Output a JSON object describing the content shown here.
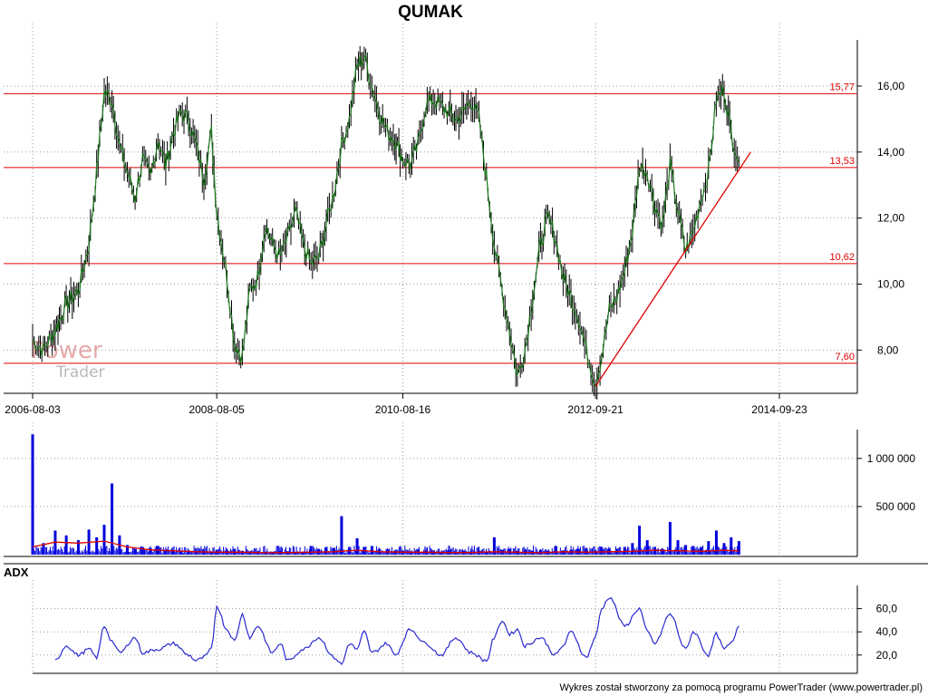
{
  "title": "QUMAK",
  "footer": "Wykres został stworzony za pomocą programu PowerTrader (www.powertrader.pl)",
  "watermark": {
    "line1": "Power",
    "line2": "Trader"
  },
  "colors": {
    "price_line": "#1a7a1a",
    "candle": "#000000",
    "level_line": "#e00000",
    "volume_bar": "#0000dd",
    "volume_avg": "#e00000",
    "adx_line": "#2a2ad0",
    "grid": "#9a9a9a"
  },
  "chart_data": [
    {
      "name": "price",
      "type": "line",
      "title": "QUMAK",
      "x_ticks": [
        "2006-08-03",
        "2008-08-05",
        "2010-08-16",
        "2012-09-21",
        "2014-09-23"
      ],
      "y_ticks": [
        "8,00",
        "10,00",
        "12,00",
        "14,00",
        "16,00"
      ],
      "ylim": [
        6.8,
        17.4
      ],
      "grid": "on",
      "levels": [
        {
          "value": 15.77,
          "label": "15,77"
        },
        {
          "value": 13.53,
          "label": "13,53"
        },
        {
          "value": 10.62,
          "label": "10,62"
        },
        {
          "value": 7.6,
          "label": "7,60"
        }
      ],
      "trendline": {
        "from": [
          "2012-09-21",
          6.9
        ],
        "to": [
          "2014-06-01",
          14.0
        ]
      },
      "series": [
        {
          "x": [
            "2006-08-03",
            "2006-09-15",
            "2006-11-01",
            "2006-12-15",
            "2007-02-01",
            "2007-03-15",
            "2007-04-15",
            "2007-05-15",
            "2007-06-15",
            "2007-07-15",
            "2007-08-15",
            "2007-09-15",
            "2007-10-15",
            "2007-11-15",
            "2007-12-15",
            "2008-01-15",
            "2008-02-15",
            "2008-03-15",
            "2008-04-15",
            "2008-05-15",
            "2008-06-15",
            "2008-07-15",
            "2008-08-05",
            "2008-09-15",
            "2008-10-15",
            "2008-11-15",
            "2008-12-15",
            "2009-01-15",
            "2009-02-15",
            "2009-03-15",
            "2009-04-15",
            "2009-05-15",
            "2009-06-15",
            "2009-07-15",
            "2009-08-15",
            "2009-09-15",
            "2009-10-15",
            "2009-11-15",
            "2009-12-15",
            "2010-01-15",
            "2010-02-15",
            "2010-03-15",
            "2010-04-15",
            "2010-05-15",
            "2010-06-15",
            "2010-07-15",
            "2010-08-16",
            "2010-09-15",
            "2010-10-15",
            "2010-11-15",
            "2010-12-15",
            "2011-01-15",
            "2011-02-15",
            "2011-03-15",
            "2011-04-15",
            "2011-05-15",
            "2011-06-15",
            "2011-07-15",
            "2011-08-15",
            "2011-09-15",
            "2011-10-15",
            "2011-11-15",
            "2011-12-15",
            "2012-01-15",
            "2012-02-15",
            "2012-03-15",
            "2012-04-15",
            "2012-05-15",
            "2012-06-15",
            "2012-07-15",
            "2012-08-15",
            "2012-09-21",
            "2012-10-15",
            "2012-11-15",
            "2012-12-15",
            "2013-01-15",
            "2013-02-15",
            "2013-03-15",
            "2013-04-15",
            "2013-05-15",
            "2013-06-15",
            "2013-07-15",
            "2013-08-15",
            "2013-09-15",
            "2013-10-15",
            "2013-11-15",
            "2013-12-15",
            "2014-01-15",
            "2014-02-15",
            "2014-03-15",
            "2014-04-15"
          ],
          "y": [
            8.3,
            8.0,
            8.6,
            9.4,
            9.8,
            11.2,
            13.4,
            15.8,
            15.6,
            14.2,
            13.4,
            12.6,
            13.8,
            13.2,
            14.4,
            13.6,
            14.6,
            15.2,
            15.0,
            14.2,
            13.2,
            14.6,
            12.2,
            10.2,
            8.2,
            7.8,
            9.8,
            10.2,
            11.8,
            11.2,
            10.8,
            11.4,
            12.2,
            11.2,
            10.6,
            10.8,
            11.8,
            12.8,
            14.2,
            15.0,
            16.6,
            16.9,
            16.0,
            15.2,
            14.6,
            14.4,
            13.8,
            13.6,
            14.2,
            15.4,
            15.6,
            15.4,
            15.2,
            15.0,
            15.2,
            15.6,
            15.0,
            13.2,
            11.2,
            9.8,
            8.6,
            7.2,
            8.0,
            9.6,
            11.2,
            12.0,
            11.4,
            10.2,
            9.6,
            9.0,
            8.0,
            7.0,
            7.8,
            9.2,
            9.6,
            10.4,
            11.6,
            13.6,
            13.4,
            12.4,
            11.8,
            13.6,
            12.2,
            11.0,
            11.6,
            12.6,
            13.4,
            15.6,
            15.9,
            14.6,
            13.7
          ]
        }
      ]
    },
    {
      "name": "volume",
      "type": "bar",
      "y_ticks": [
        "500 000",
        "1 000 000"
      ],
      "ylim": [
        0,
        1300000
      ],
      "series": [
        {
          "x": [
            "2006-08-03",
            "2006-09-15",
            "2006-11-01",
            "2006-12-15",
            "2007-02-01",
            "2007-03-15",
            "2007-04-15",
            "2007-05-15",
            "2007-06-15",
            "2007-07-15",
            "2007-08-15",
            "2007-09-15",
            "2007-10-15",
            "2007-11-15",
            "2007-12-15",
            "2008-01-15",
            "2008-02-15",
            "2008-03-15",
            "2008-04-15",
            "2008-05-15",
            "2008-06-15",
            "2008-07-15",
            "2008-08-05",
            "2008-09-15",
            "2008-10-15",
            "2008-11-15",
            "2008-12-15",
            "2009-01-15",
            "2009-02-15",
            "2009-03-15",
            "2009-04-15",
            "2009-05-15",
            "2009-06-15",
            "2009-07-15",
            "2009-08-15",
            "2009-09-15",
            "2009-10-15",
            "2009-11-15",
            "2009-12-15",
            "2010-01-15",
            "2010-02-15",
            "2010-03-15",
            "2010-04-15",
            "2010-05-15",
            "2010-06-15",
            "2010-07-15",
            "2010-08-16",
            "2010-09-15",
            "2010-10-15",
            "2010-11-15",
            "2010-12-15",
            "2011-01-15",
            "2011-02-15",
            "2011-03-15",
            "2011-04-15",
            "2011-05-15",
            "2011-06-15",
            "2011-07-15",
            "2011-08-15",
            "2011-09-15",
            "2011-10-15",
            "2011-11-15",
            "2011-12-15",
            "2012-01-15",
            "2012-02-15",
            "2012-03-15",
            "2012-04-15",
            "2012-05-15",
            "2012-06-15",
            "2012-07-15",
            "2012-08-15",
            "2012-09-21",
            "2012-10-15",
            "2012-11-15",
            "2012-12-15",
            "2013-01-15",
            "2013-02-15",
            "2013-03-15",
            "2013-04-15",
            "2013-05-15",
            "2013-06-15",
            "2013-07-15",
            "2013-08-15",
            "2013-09-15",
            "2013-10-15",
            "2013-11-15",
            "2013-12-15",
            "2014-01-15",
            "2014-02-15",
            "2014-03-15",
            "2014-04-15"
          ],
          "y": [
            1250000,
            120000,
            250000,
            200000,
            150000,
            260000,
            180000,
            310000,
            740000,
            200000,
            100000,
            60000,
            80000,
            70000,
            90000,
            50000,
            40000,
            30000,
            45000,
            35000,
            40000,
            30000,
            50000,
            45000,
            60000,
            40000,
            30000,
            35000,
            30000,
            25000,
            40000,
            35000,
            30000,
            25000,
            90000,
            60000,
            80000,
            70000,
            400000,
            60000,
            170000,
            80000,
            90000,
            60000,
            50000,
            40000,
            40000,
            35000,
            50000,
            40000,
            35000,
            30000,
            45000,
            30000,
            40000,
            35000,
            40000,
            30000,
            180000,
            50000,
            60000,
            40000,
            45000,
            40000,
            50000,
            40000,
            90000,
            45000,
            50000,
            60000,
            70000,
            40000,
            80000,
            60000,
            60000,
            80000,
            120000,
            300000,
            150000,
            80000,
            60000,
            340000,
            150000,
            100000,
            90000,
            80000,
            140000,
            250000,
            120000,
            180000,
            140000
          ]
        },
        {
          "name": "avg",
          "x": [
            "2006-08-03",
            "2006-11-01",
            "2007-02-01",
            "2007-05-15",
            "2007-08-15",
            "2007-11-15",
            "2008-02-15",
            "2008-05-15",
            "2008-08-05",
            "2008-11-15",
            "2009-02-15",
            "2009-05-15",
            "2009-08-15",
            "2009-11-15",
            "2010-02-15",
            "2010-05-15",
            "2010-08-16",
            "2010-11-15",
            "2011-02-15",
            "2011-05-15",
            "2011-08-15",
            "2011-11-15",
            "2012-02-15",
            "2012-05-15",
            "2012-08-15",
            "2012-11-15",
            "2013-02-15",
            "2013-05-15",
            "2013-08-15",
            "2013-11-15",
            "2014-02-15",
            "2014-04-15"
          ],
          "y": [
            80000,
            130000,
            120000,
            140000,
            80000,
            50000,
            40000,
            30000,
            25000,
            25000,
            20000,
            22000,
            25000,
            30000,
            45000,
            30000,
            25000,
            25000,
            22000,
            22000,
            30000,
            25000,
            20000,
            30000,
            25000,
            30000,
            35000,
            45000,
            40000,
            35000,
            45000,
            40000
          ]
        }
      ]
    },
    {
      "name": "adx",
      "type": "line",
      "title": "ADX",
      "y_ticks": [
        "20,0",
        "40,0",
        "60,0"
      ],
      "ylim": [
        5,
        80
      ],
      "series": [
        {
          "x": [
            "2006-11-01",
            "2006-12-15",
            "2007-02-01",
            "2007-03-15",
            "2007-04-15",
            "2007-05-15",
            "2007-06-15",
            "2007-07-15",
            "2007-09-15",
            "2007-10-15",
            "2007-12-15",
            "2008-02-15",
            "2008-04-15",
            "2008-05-15",
            "2008-06-15",
            "2008-07-15",
            "2008-08-05",
            "2008-09-15",
            "2008-10-15",
            "2008-11-15",
            "2008-12-15",
            "2009-01-15",
            "2009-03-15",
            "2009-04-15",
            "2009-05-15",
            "2009-07-15",
            "2009-09-15",
            "2009-11-15",
            "2009-12-15",
            "2010-01-15",
            "2010-02-15",
            "2010-03-15",
            "2010-04-15",
            "2010-06-15",
            "2010-07-15",
            "2010-09-15",
            "2010-11-15",
            "2011-01-15",
            "2011-03-15",
            "2011-05-15",
            "2011-07-15",
            "2011-08-15",
            "2011-09-15",
            "2011-10-15",
            "2011-11-15",
            "2011-12-15",
            "2012-02-15",
            "2012-04-15",
            "2012-05-15",
            "2012-06-15",
            "2012-08-15",
            "2012-09-21",
            "2012-10-15",
            "2012-11-15",
            "2013-01-15",
            "2013-03-15",
            "2013-04-15",
            "2013-05-15",
            "2013-07-15",
            "2013-09-15",
            "2013-10-15",
            "2013-12-15",
            "2014-01-15",
            "2014-02-15",
            "2014-03-15",
            "2014-04-15"
          ],
          "y": [
            15,
            28,
            20,
            25,
            18,
            45,
            32,
            22,
            35,
            22,
            25,
            30,
            20,
            15,
            18,
            25,
            62,
            42,
            32,
            55,
            35,
            45,
            22,
            30,
            15,
            25,
            35,
            18,
            12,
            30,
            25,
            40,
            22,
            30,
            20,
            42,
            30,
            20,
            35,
            22,
            15,
            35,
            50,
            38,
            42,
            28,
            35,
            20,
            28,
            40,
            18,
            35,
            60,
            70,
            45,
            60,
            40,
            30,
            55,
            25,
            40,
            20,
            38,
            25,
            30,
            45
          ]
        }
      ]
    }
  ]
}
